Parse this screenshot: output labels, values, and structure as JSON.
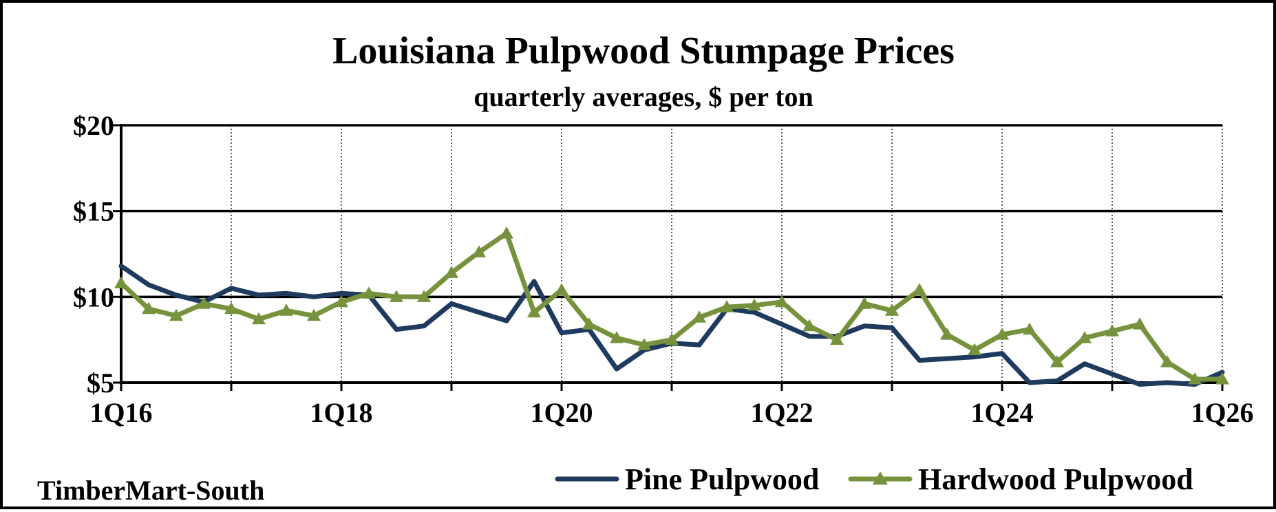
{
  "chart_data": {
    "type": "line",
    "title": "Louisiana Pulpwood Stumpage Prices",
    "subtitle": "quarterly averages, $ per ton",
    "source": "TimberMart-South",
    "ylim": [
      5,
      20
    ],
    "yticks": [
      5,
      10,
      15,
      20
    ],
    "ytick_labels": [
      "$5",
      "$10",
      "$15",
      "$20"
    ],
    "xtick_labels": [
      "1Q16",
      "1Q18",
      "1Q20",
      "1Q22",
      "1Q24",
      "1Q26"
    ],
    "legend_position": "bottom-right",
    "grid": "horizontal solid major lines, vertical dotted yearly lines",
    "x": [
      "1Q16",
      "2Q16",
      "3Q16",
      "4Q16",
      "1Q17",
      "2Q17",
      "3Q17",
      "4Q17",
      "1Q18",
      "2Q18",
      "3Q18",
      "4Q18",
      "1Q19",
      "2Q19",
      "3Q19",
      "4Q19",
      "1Q20",
      "2Q20",
      "3Q20",
      "4Q20",
      "1Q21",
      "2Q21",
      "3Q21",
      "4Q21",
      "1Q22",
      "2Q22",
      "3Q22",
      "4Q22",
      "1Q23",
      "2Q23",
      "3Q23",
      "4Q23",
      "1Q24",
      "2Q24",
      "3Q24",
      "4Q24",
      "1Q25",
      "2Q25",
      "3Q25",
      "4Q25",
      "1Q26"
    ],
    "series": [
      {
        "name": "Pine Pulpwood",
        "color": "#1f3a5f",
        "marker": "none",
        "values": [
          11.8,
          10.7,
          10.1,
          9.7,
          10.5,
          10.1,
          10.2,
          10.0,
          10.2,
          10.1,
          8.1,
          8.3,
          9.6,
          9.1,
          8.6,
          10.9,
          7.9,
          8.1,
          5.8,
          6.9,
          7.3,
          7.2,
          9.3,
          9.1,
          8.4,
          7.7,
          7.7,
          8.3,
          8.2,
          6.3,
          6.4,
          6.5,
          6.7,
          5.0,
          5.1,
          6.1,
          5.5,
          4.9,
          5.0,
          4.9,
          5.6
        ]
      },
      {
        "name": "Hardwood Pulpwood",
        "color": "#76923c",
        "marker": "triangle",
        "values": [
          10.8,
          9.3,
          8.9,
          9.6,
          9.3,
          8.7,
          9.2,
          8.9,
          9.7,
          10.2,
          10.0,
          10.0,
          11.4,
          12.6,
          13.7,
          9.1,
          10.4,
          8.4,
          7.6,
          7.2,
          7.5,
          8.8,
          9.4,
          9.5,
          9.7,
          8.3,
          7.5,
          9.6,
          9.2,
          10.4,
          7.8,
          6.9,
          7.8,
          8.1,
          6.2,
          7.6,
          8.0,
          8.4,
          6.2,
          5.2,
          5.2
        ]
      }
    ]
  }
}
